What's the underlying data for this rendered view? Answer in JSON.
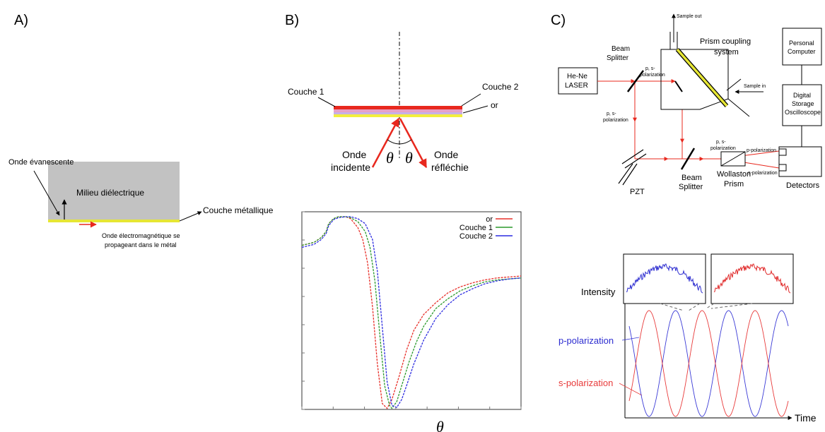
{
  "panels": {
    "a": {
      "letter": "A)"
    },
    "b": {
      "letter": "B)"
    },
    "c": {
      "letter": "C)"
    }
  },
  "panel_a": {
    "evanescent_wave": "Onde évanescente",
    "dielectric": "Milieu diélectrique",
    "metal_layer": "Couche métallique",
    "em_wave_line1": "Onde électromagnétique se",
    "em_wave_line2": "propageant dans le métal"
  },
  "panel_b_setup": {
    "layer1": "Couche 1",
    "layer2": "Couche 2",
    "gold": "or",
    "incident_line1": "Onde",
    "incident_line2": "incidente",
    "reflected_line1": "Onde",
    "reflected_line2": "réfléchie",
    "theta": "θ",
    "colors": {
      "red": "#e8281e",
      "pink": "#e7a0c8",
      "lavender": "#c7b0e6",
      "yellow": "#f2ee3e"
    }
  },
  "chart_data": {
    "type": "line",
    "xlabel": "θ",
    "x_range": [
      0,
      90
    ],
    "y_range": [
      0,
      1
    ],
    "legend_position": "top-right",
    "series": [
      {
        "name": "or",
        "color": "#e8302a",
        "x": [
          0,
          5,
          8,
          10,
          11,
          13,
          15,
          18,
          20,
          23,
          25,
          27,
          29,
          31,
          33,
          35,
          37,
          40,
          43,
          46,
          50,
          55,
          60,
          65,
          70,
          75,
          80,
          85,
          90
        ],
        "y": [
          0.83,
          0.845,
          0.87,
          0.9,
          0.94,
          0.965,
          0.975,
          0.975,
          0.965,
          0.92,
          0.86,
          0.74,
          0.52,
          0.23,
          0.03,
          0.005,
          0.05,
          0.17,
          0.3,
          0.4,
          0.48,
          0.54,
          0.59,
          0.62,
          0.64,
          0.655,
          0.665,
          0.67,
          0.675
        ]
      },
      {
        "name": "Couche 1",
        "color": "#2c9a2c",
        "x": [
          0,
          5,
          8,
          10,
          11,
          13,
          15,
          18,
          20,
          23,
          26,
          28,
          30,
          32,
          34,
          36,
          37,
          39,
          41,
          44,
          47,
          50,
          55,
          60,
          65,
          70,
          75,
          80,
          85,
          90
        ],
        "y": [
          0.83,
          0.845,
          0.87,
          0.9,
          0.94,
          0.965,
          0.975,
          0.975,
          0.97,
          0.95,
          0.9,
          0.82,
          0.65,
          0.38,
          0.12,
          0.02,
          0.005,
          0.04,
          0.12,
          0.24,
          0.34,
          0.42,
          0.51,
          0.56,
          0.6,
          0.625,
          0.645,
          0.655,
          0.66,
          0.665
        ]
      },
      {
        "name": "Couche 2",
        "color": "#2c2ce0",
        "x": [
          0,
          5,
          8,
          10,
          11,
          13,
          15,
          18,
          20,
          23,
          26,
          29,
          31,
          33,
          35,
          37,
          39,
          41,
          43,
          46,
          50,
          55,
          60,
          65,
          70,
          75,
          80,
          85,
          90
        ],
        "y": [
          0.82,
          0.835,
          0.86,
          0.89,
          0.93,
          0.96,
          0.97,
          0.975,
          0.975,
          0.965,
          0.94,
          0.86,
          0.7,
          0.42,
          0.14,
          0.02,
          0.01,
          0.05,
          0.12,
          0.23,
          0.35,
          0.46,
          0.53,
          0.58,
          0.61,
          0.635,
          0.65,
          0.66,
          0.665
        ]
      }
    ]
  },
  "panel_c_setup": {
    "he_ne_line1": "He-Ne",
    "he_ne_line2": "LASER",
    "beam_splitter_line1": "Beam",
    "beam_splitter_line2": "Splitter",
    "ps_pol_top_line1": "p, s-",
    "ps_pol_top_line2": "polarization",
    "ps_pol_left_line1": "p, s-",
    "ps_pol_left_line2": "polarization",
    "ps_pol_bottom_line1": "p, s-",
    "ps_pol_bottom_line2": "polarization",
    "sample_out": "Sample out",
    "sample_in": "Sample in",
    "prism_coupling_line1": "Prism coupling",
    "prism_coupling_line2": "system",
    "pc_line1": "Personal",
    "pc_line2": "Computer",
    "dso_line1": "Digital",
    "dso_line2": "Storage",
    "dso_line3": "Oscilloscope",
    "p_pol": "p-polarization",
    "s_pol": "s-polarization",
    "pzt": "PZT",
    "beam_splitter2_line1": "Beam",
    "beam_splitter2_line2": "Splitter",
    "wollaston_line1": "Wollaston",
    "wollaston_line2": "Prism",
    "detectors": "Detectors"
  },
  "panel_c_signal": {
    "intensity": "Intensity",
    "p_pol": "p-polarization",
    "s_pol": "s-polarization",
    "time": "Time",
    "p_color": "#3a3ad6",
    "s_color": "#e83a3a"
  }
}
